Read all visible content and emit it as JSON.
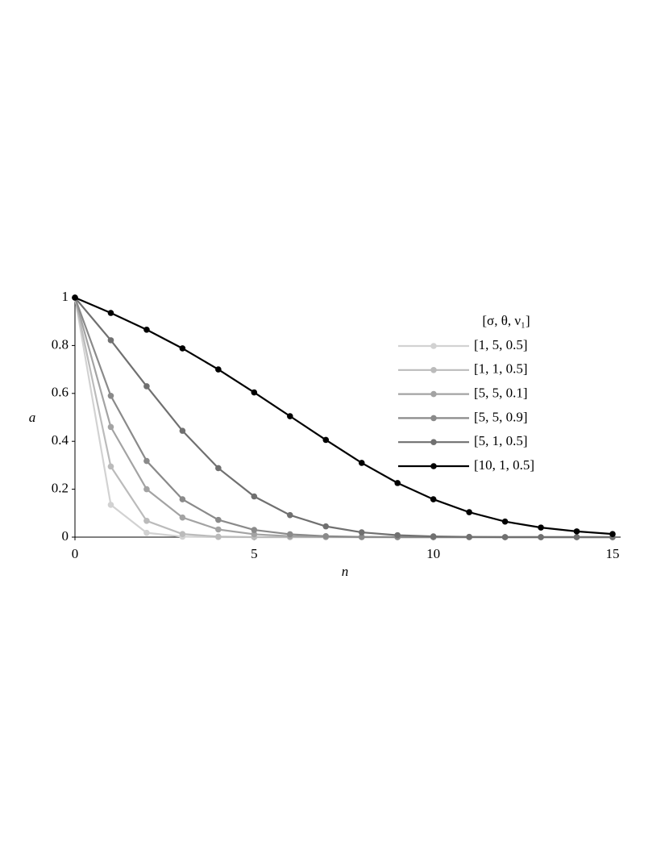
{
  "chart_data": {
    "type": "line",
    "x_label": "n",
    "y_label": "a",
    "legend_title": "[σ, θ, ν₁]",
    "legend_position": "upper right",
    "x": [
      0,
      1,
      2,
      3,
      4,
      5,
      6,
      7,
      8,
      9,
      10,
      11,
      12,
      13,
      14,
      15
    ],
    "xlim": [
      0,
      15
    ],
    "xticks": [
      0,
      5,
      10,
      15
    ],
    "ylim": [
      0,
      1
    ],
    "yticks": [
      0,
      0.2,
      0.4,
      0.6,
      0.8,
      1
    ],
    "series": [
      {
        "name": "[1, 5, 0.5]",
        "color": "#d2d2d2",
        "values": [
          1,
          0.135,
          0.018,
          0.002,
          0,
          0,
          0,
          0,
          0,
          0,
          0,
          0,
          0,
          0,
          0,
          0
        ]
      },
      {
        "name": "[1, 1, 0.5]",
        "color": "#bbbbbb",
        "values": [
          1,
          0.295,
          0.068,
          0.013,
          0.002,
          0,
          0,
          0,
          0,
          0,
          0,
          0,
          0,
          0,
          0,
          0
        ]
      },
      {
        "name": "[5, 5, 0.1]",
        "color": "#a3a3a3",
        "values": [
          1,
          0.46,
          0.2,
          0.082,
          0.032,
          0.012,
          0.004,
          0.001,
          0,
          0,
          0,
          0,
          0,
          0,
          0,
          0
        ]
      },
      {
        "name": "[5, 5, 0.9]",
        "color": "#8a8a8a",
        "values": [
          1,
          0.59,
          0.318,
          0.158,
          0.072,
          0.03,
          0.012,
          0.004,
          0.001,
          0,
          0,
          0,
          0,
          0,
          0,
          0
        ]
      },
      {
        "name": "[5, 1, 0.5]",
        "color": "#707070",
        "values": [
          1,
          0.822,
          0.63,
          0.444,
          0.288,
          0.17,
          0.092,
          0.045,
          0.02,
          0.008,
          0.003,
          0.001,
          0,
          0,
          0,
          0
        ]
      },
      {
        "name": "[10, 1, 0.5]",
        "color": "#000000",
        "values": [
          1,
          0.936,
          0.866,
          0.788,
          0.7,
          0.604,
          0.505,
          0.406,
          0.31,
          0.226,
          0.158,
          0.104,
          0.065,
          0.04,
          0.024,
          0.013
        ]
      }
    ]
  }
}
